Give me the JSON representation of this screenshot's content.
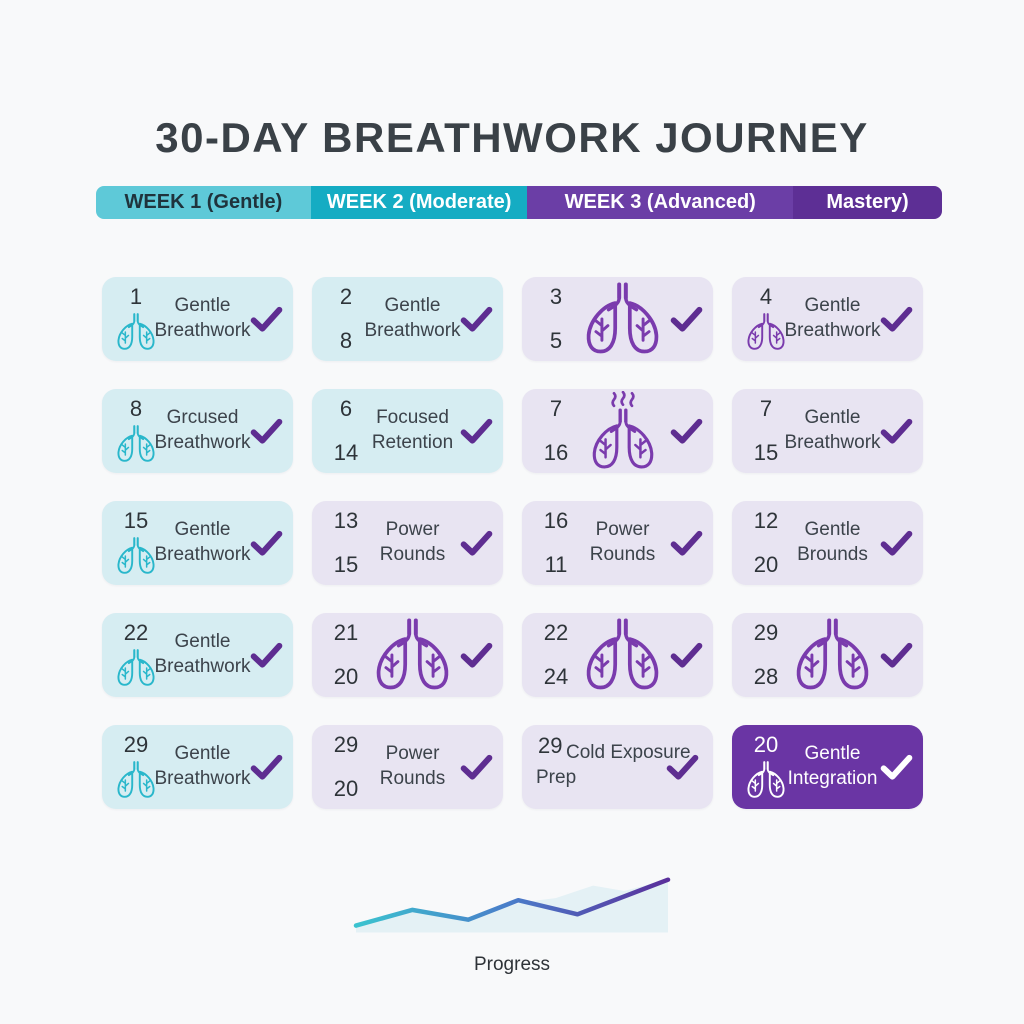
{
  "title": "30-DAY BREATHWORK JOURNEY",
  "weeks": [
    {
      "label": "WEEK 1 (Gentle)"
    },
    {
      "label": "WEEK 2 (Moderate)"
    },
    {
      "label": "WEEK 3 (Advanced)"
    },
    {
      "label": "Mastery)"
    }
  ],
  "grid": {
    "cards": [
      {
        "day_numbers": [
          "1"
        ],
        "icon": "lungs",
        "icon_color": "teal",
        "icon_size": "small",
        "label": "Gentle Breathwork",
        "bg": "cyan",
        "check": "purple"
      },
      {
        "day_numbers": [
          "2",
          "8"
        ],
        "icon": null,
        "label": "Gentle Breathwork",
        "bg": "cyan",
        "check": "purple"
      },
      {
        "day_numbers": [
          "3",
          "5"
        ],
        "icon": "lungs",
        "icon_color": "purple",
        "icon_size": "large",
        "label": null,
        "bg": "lavender",
        "check": "purple"
      },
      {
        "day_numbers": [
          "4"
        ],
        "icon": "lungs",
        "icon_color": "purple",
        "icon_size": "small",
        "label": "Gentle Breathwork",
        "bg": "lavender",
        "check": "purple"
      },
      {
        "day_numbers": [
          "8"
        ],
        "icon": "lungs",
        "icon_color": "teal",
        "icon_size": "small",
        "label": "Grcused Breathwork",
        "bg": "cyan",
        "check": "purple"
      },
      {
        "day_numbers": [
          "6",
          "14"
        ],
        "icon": null,
        "label": "Focused Retention",
        "bg": "cyan",
        "check": "purple"
      },
      {
        "day_numbers": [
          "7",
          "16"
        ],
        "icon": "lungs-steam",
        "icon_color": "purple",
        "icon_size": "large",
        "label": null,
        "bg": "lavender",
        "check": "purple"
      },
      {
        "day_numbers": [
          "7",
          "15"
        ],
        "icon": null,
        "label": "Gentle Breathwork",
        "bg": "lavender",
        "check": "purple"
      },
      {
        "day_numbers": [
          "15"
        ],
        "icon": "lungs",
        "icon_color": "teal",
        "icon_size": "small",
        "label": "Gentle Breathwork",
        "bg": "cyan",
        "check": "purple"
      },
      {
        "day_numbers": [
          "13",
          "15"
        ],
        "icon": null,
        "label": "Power Rounds",
        "bg": "lavender",
        "check": "purple"
      },
      {
        "day_numbers": [
          "16",
          "11"
        ],
        "icon": null,
        "label": "Power Rounds",
        "bg": "lavender",
        "check": "purple"
      },
      {
        "day_numbers": [
          "12",
          "20"
        ],
        "icon": null,
        "label": "Gentle Brounds",
        "bg": "lavender",
        "check": "purple"
      },
      {
        "day_numbers": [
          "22"
        ],
        "icon": "lungs",
        "icon_color": "teal",
        "icon_size": "small",
        "label": "Gentle Breathwork",
        "bg": "cyan",
        "check": "purple"
      },
      {
        "day_numbers": [
          "21",
          "20"
        ],
        "icon": "lungs",
        "icon_color": "purple",
        "icon_size": "large",
        "label": null,
        "bg": "lavender",
        "check": "purple"
      },
      {
        "day_numbers": [
          "22",
          "24"
        ],
        "icon": "lungs",
        "icon_color": "purple",
        "icon_size": "large",
        "label": null,
        "bg": "lavender",
        "check": "purple"
      },
      {
        "day_numbers": [
          "29",
          "28"
        ],
        "icon": "lungs",
        "icon_color": "purple",
        "icon_size": "large",
        "label": null,
        "bg": "lavender",
        "check": "purple"
      },
      {
        "day_numbers": [
          "29"
        ],
        "icon": "lungs",
        "icon_color": "teal",
        "icon_size": "small",
        "label": "Gentle Breathwork",
        "bg": "cyan",
        "check": "purple"
      },
      {
        "day_numbers": [
          "29",
          "20"
        ],
        "icon": null,
        "label": "Power Rounds",
        "bg": "lavender",
        "check": "purple"
      },
      {
        "day_numbers": [
          "29"
        ],
        "icon": null,
        "label": "Cold Exposure Prep",
        "bg": "lavender",
        "check": "purple",
        "wide": true
      },
      {
        "day_numbers": [
          "20"
        ],
        "icon": "lungs",
        "icon_color": "white",
        "icon_size": "small",
        "label": "Gentle Integration",
        "bg": "purple",
        "check": "white"
      }
    ]
  },
  "chart_data": {
    "type": "area",
    "title": "Progress",
    "xlabel": "",
    "ylabel": "",
    "axes_visible": false,
    "x_range": [
      0,
      1
    ],
    "y_range": [
      0,
      1
    ],
    "line_points": [
      [
        0,
        0.1
      ],
      [
        0.18,
        0.39
      ],
      [
        0.36,
        0.21
      ],
      [
        0.52,
        0.57
      ],
      [
        0.71,
        0.31
      ],
      [
        1,
        0.95
      ]
    ],
    "area_points": [
      [
        0,
        0.06
      ],
      [
        0.18,
        0.35
      ],
      [
        0.36,
        0.22
      ],
      [
        0.53,
        0.53
      ],
      [
        0.64,
        0.61
      ],
      [
        0.76,
        0.84
      ],
      [
        0.86,
        0.74
      ],
      [
        1,
        0.96
      ]
    ],
    "line_gradient": [
      "#3bc3cf",
      "#4a7cc9",
      "#5a2f9b"
    ],
    "baseline_gradient": [
      "#3bc3cf",
      "#5a2f9b"
    ],
    "area_color": "#e2f0f4"
  },
  "colors": {
    "background": "#f8f9fa",
    "title_text": "#3a4147",
    "week1_bg": "#5ec9d8",
    "week1_text": "#1f333c",
    "week2_bg": "#15acc3",
    "week3_bg": "#6b3ea6",
    "week4_bg": "#5d2f95",
    "week_text_light": "#ffffff",
    "card_cyan_bg": "#d6edf2",
    "card_lavender_bg": "#e8e4f2",
    "card_purple_bg": "#6a35a4",
    "check_purple": "#5e2d91",
    "check_white": "#ffffff",
    "lungs_teal": "#29b7cb",
    "lungs_purple": "#7a3bad",
    "number_text": "#2e3439",
    "label_text": "#3c434b",
    "progress_label_text": "#2e3338"
  }
}
